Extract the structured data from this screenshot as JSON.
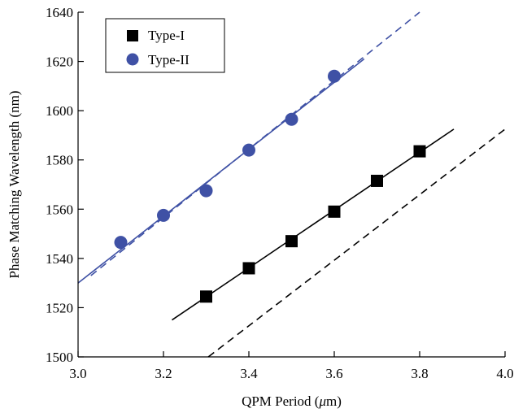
{
  "chart_data": {
    "type": "scatter",
    "title": "",
    "xlabel_prefix": "QPM Period (",
    "xlabel_unit_symbol": "μ",
    "xlabel_suffix": "m)",
    "ylabel": "Phase Matching Wavelength (nm)",
    "xlim": [
      3.0,
      4.0
    ],
    "ylim": [
      1500,
      1640
    ],
    "x_ticks": [
      "3.0",
      "3.2",
      "3.4",
      "3.6",
      "3.8",
      "4.0"
    ],
    "y_ticks": [
      "1500",
      "1520",
      "1540",
      "1560",
      "1580",
      "1600",
      "1620",
      "1640"
    ],
    "grid": false,
    "legend_position": "top-left",
    "series": [
      {
        "name": "Type-I",
        "marker": "square",
        "color": "#000000",
        "points": [
          {
            "x": 3.3,
            "y": 1524.5
          },
          {
            "x": 3.4,
            "y": 1536
          },
          {
            "x": 3.5,
            "y": 1547
          },
          {
            "x": 3.6,
            "y": 1559
          },
          {
            "x": 3.7,
            "y": 1571.5
          },
          {
            "x": 3.8,
            "y": 1583.5
          }
        ],
        "fit_line": {
          "style": "solid",
          "x": [
            3.22,
            3.88
          ],
          "y": [
            1515,
            1592.5
          ]
        },
        "theory_line": {
          "style": "dashed",
          "x": [
            3.305,
            4.0
          ],
          "y": [
            1500,
            1592.5
          ]
        }
      },
      {
        "name": "Type-II",
        "marker": "circle",
        "color": "#3f51a5",
        "points": [
          {
            "x": 3.1,
            "y": 1546.5
          },
          {
            "x": 3.2,
            "y": 1557.5
          },
          {
            "x": 3.3,
            "y": 1567.5
          },
          {
            "x": 3.4,
            "y": 1584
          },
          {
            "x": 3.5,
            "y": 1596.5
          },
          {
            "x": 3.6,
            "y": 1614
          }
        ],
        "fit_line": {
          "style": "solid",
          "x": [
            3.0,
            3.67
          ],
          "y": [
            1530,
            1621
          ]
        },
        "theory_line": {
          "style": "dashed",
          "x": [
            3.03,
            3.8
          ],
          "y": [
            1533,
            1640
          ]
        }
      }
    ]
  }
}
